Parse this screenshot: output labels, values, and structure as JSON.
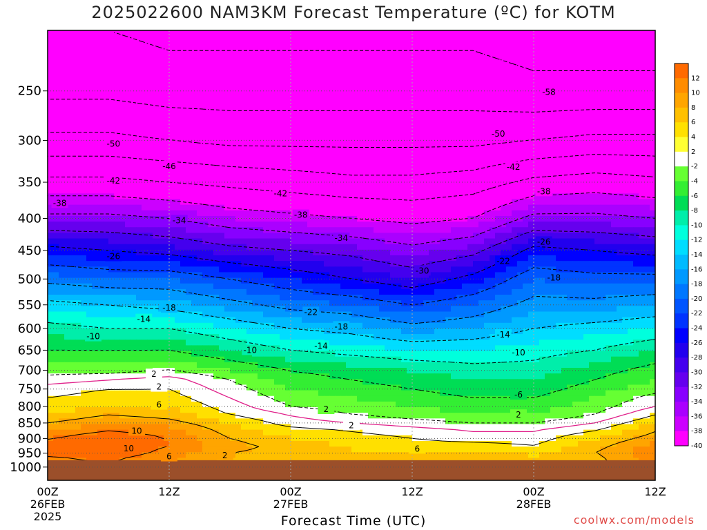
{
  "title": "2025022600 NAM3KM Forecast Temperature (ºC) for KOTM",
  "watermark": "coolwx.com/models",
  "chart_data": {
    "type": "heatmap",
    "title": "2025022600 NAM3KM Forecast Temperature (ºC) for KOTM",
    "xlabel": "Forecast Time (UTC)",
    "ylabel": "",
    "y_scale": "log-pressure",
    "y_inverted": true,
    "ylim": [
      200,
      1050
    ],
    "y_ticks": [
      250,
      300,
      350,
      400,
      450,
      500,
      550,
      600,
      650,
      700,
      750,
      800,
      850,
      900,
      950,
      1000
    ],
    "x_ticks": [
      {
        "hour": 0,
        "line1": "00Z",
        "line2": "26FEB",
        "line3": "2025"
      },
      {
        "hour": 12,
        "line1": "12Z",
        "line2": "",
        "line3": ""
      },
      {
        "hour": 24,
        "line1": "00Z",
        "line2": "27FEB",
        "line3": ""
      },
      {
        "hour": 36,
        "line1": "12Z",
        "line2": "",
        "line3": ""
      },
      {
        "hour": 48,
        "line1": "00Z",
        "line2": "28FEB",
        "line3": ""
      },
      {
        "hour": 60,
        "line1": "12Z",
        "line2": "",
        "line3": ""
      }
    ],
    "xlim": [
      0,
      60
    ],
    "grid": true,
    "surface_pressure": 975,
    "surface_color": "#9b4f2a",
    "colorbar": {
      "position": "right",
      "labels": [
        12,
        10,
        8,
        6,
        4,
        2,
        -2,
        -4,
        -6,
        -8,
        -10,
        -12,
        -14,
        -16,
        -18,
        -20,
        -22,
        -24,
        -26,
        -28,
        -30,
        -32,
        -34,
        -36,
        -38,
        -40
      ],
      "colors": [
        "#ff6a00",
        "#ff8c00",
        "#ffa500",
        "#ffc000",
        "#ffe000",
        "#ffff33",
        "#ffffff",
        "#66ff33",
        "#33ee33",
        "#00dd55",
        "#00eeaa",
        "#00ffdd",
        "#00ddff",
        "#00bbff",
        "#0099ff",
        "#0077ff",
        "#0055ff",
        "#0033ff",
        "#0000ff",
        "#2200ee",
        "#4400ee",
        "#6600ee",
        "#8800ff",
        "#aa00ff",
        "#cc00ff",
        "#ff00ff"
      ]
    },
    "temperature_profile": {
      "levels_hpa": [
        975,
        950,
        925,
        900,
        875,
        850,
        825,
        800,
        775,
        750,
        725,
        700,
        650,
        600,
        550,
        500,
        450,
        400,
        350,
        300,
        250,
        200
      ],
      "times_hr": [
        0,
        6,
        12,
        18,
        24,
        30,
        36,
        42,
        48,
        54,
        60
      ],
      "values_c": [
        [
          9,
          10,
          8,
          6,
          4,
          4,
          5,
          5,
          4,
          5,
          9
        ],
        [
          11,
          12,
          9,
          6,
          5,
          4,
          5,
          5,
          4,
          6,
          10
        ],
        [
          11,
          12,
          10,
          7,
          5,
          4,
          3,
          3,
          2,
          5,
          9
        ],
        [
          10,
          12,
          10,
          6,
          4,
          3,
          2,
          1,
          1,
          4,
          7
        ],
        [
          8,
          10,
          9,
          5,
          3,
          2,
          1,
          0,
          0,
          2,
          6
        ],
        [
          6,
          8,
          7,
          4,
          1,
          0,
          -1,
          -2,
          -2,
          0,
          4
        ],
        [
          4,
          6,
          5,
          2,
          0,
          -2,
          -3,
          -4,
          -4,
          -2,
          2
        ],
        [
          3,
          4,
          4,
          1,
          -2,
          -3,
          -4,
          -5,
          -5,
          -3,
          0
        ],
        [
          2,
          3,
          3,
          0,
          -3,
          -4,
          -5,
          -6,
          -6,
          -4,
          -1
        ],
        [
          1,
          2,
          2,
          -1,
          -4,
          -5,
          -6,
          -7,
          -7,
          -5,
          -3
        ],
        [
          -1,
          0,
          1,
          -2,
          -5,
          -6,
          -7,
          -8,
          -8,
          -6,
          -4
        ],
        [
          -3,
          -3,
          -2,
          -4,
          -6,
          -7,
          -8,
          -9,
          -9,
          -7,
          -5
        ],
        [
          -6,
          -6,
          -6,
          -8,
          -10,
          -11,
          -12,
          -12,
          -11,
          -10,
          -8
        ],
        [
          -9,
          -10,
          -10,
          -12,
          -14,
          -15,
          -17,
          -16,
          -14,
          -13,
          -12
        ],
        [
          -13,
          -14,
          -15,
          -17,
          -19,
          -20,
          -22,
          -20,
          -17,
          -17,
          -16
        ],
        [
          -19,
          -20,
          -20,
          -22,
          -24,
          -26,
          -28,
          -25,
          -20,
          -21,
          -21
        ],
        [
          -25,
          -26,
          -27,
          -29,
          -30,
          -31,
          -33,
          -31,
          -25,
          -26,
          -27
        ],
        [
          -33,
          -33,
          -34,
          -36,
          -37,
          -38,
          -39,
          -38,
          -33,
          -33,
          -34
        ],
        [
          -41,
          -41,
          -42,
          -43,
          -44,
          -45,
          -45,
          -44,
          -41,
          -40,
          -41
        ],
        [
          -49,
          -49,
          -50,
          -51,
          -51,
          -51,
          -51,
          -51,
          -50,
          -49,
          -49
        ],
        [
          -55,
          -55,
          -56,
          -56,
          -56,
          -56,
          -56,
          -56,
          -57,
          -57,
          -57
        ],
        [
          -58,
          -58,
          -59,
          -59,
          -59,
          -59,
          -59,
          -59,
          -60,
          -60,
          -60
        ]
      ]
    },
    "contour_labels": [
      {
        "value": "-58",
        "hour": 49.5,
        "p": 251
      },
      {
        "value": "-50",
        "hour": 6.5,
        "p": 304
      },
      {
        "value": "-50",
        "hour": 44.5,
        "p": 293
      },
      {
        "value": "-46",
        "hour": 12,
        "p": 330
      },
      {
        "value": "-42",
        "hour": 6.5,
        "p": 348
      },
      {
        "value": "-42",
        "hour": 23,
        "p": 365
      },
      {
        "value": "-42",
        "hour": 46,
        "p": 331
      },
      {
        "value": "-38",
        "hour": 1.2,
        "p": 378
      },
      {
        "value": "-38",
        "hour": 25,
        "p": 395
      },
      {
        "value": "-38",
        "hour": 49,
        "p": 362
      },
      {
        "value": "-34",
        "hour": 13,
        "p": 403
      },
      {
        "value": "-34",
        "hour": 29,
        "p": 430
      },
      {
        "value": "-30",
        "hour": 37,
        "p": 485
      },
      {
        "value": "-26",
        "hour": 6.5,
        "p": 460
      },
      {
        "value": "-26",
        "hour": 49,
        "p": 436
      },
      {
        "value": "-22",
        "hour": 26,
        "p": 565
      },
      {
        "value": "-22",
        "hour": 45,
        "p": 468
      },
      {
        "value": "-18",
        "hour": 12,
        "p": 556
      },
      {
        "value": "-18",
        "hour": 29,
        "p": 596
      },
      {
        "value": "-18",
        "hour": 50,
        "p": 498
      },
      {
        "value": "-14",
        "hour": 9.5,
        "p": 580
      },
      {
        "value": "-14",
        "hour": 27,
        "p": 640
      },
      {
        "value": "-14",
        "hour": 45,
        "p": 614
      },
      {
        "value": "-10",
        "hour": 4.5,
        "p": 618
      },
      {
        "value": "-10",
        "hour": 20,
        "p": 650
      },
      {
        "value": "-10",
        "hour": 46.5,
        "p": 656
      },
      {
        "value": "-6",
        "hour": 46.5,
        "p": 766
      },
      {
        "value": "2",
        "hour": 10.5,
        "p": 710
      },
      {
        "value": "2",
        "hour": 11,
        "p": 744
      },
      {
        "value": "2",
        "hour": 27.5,
        "p": 808
      },
      {
        "value": "2",
        "hour": 30,
        "p": 858
      },
      {
        "value": "2",
        "hour": 46.5,
        "p": 825
      },
      {
        "value": "2",
        "hour": 17.5,
        "p": 958
      },
      {
        "value": "6",
        "hour": 11,
        "p": 795
      },
      {
        "value": "6",
        "hour": 36.5,
        "p": 935
      },
      {
        "value": "6",
        "hour": 12,
        "p": 962
      },
      {
        "value": "10",
        "hour": 8.8,
        "p": 875
      },
      {
        "value": "10",
        "hour": 8,
        "p": 934
      }
    ]
  },
  "axis": {
    "xlabel": "Forecast Time (UTC)"
  }
}
